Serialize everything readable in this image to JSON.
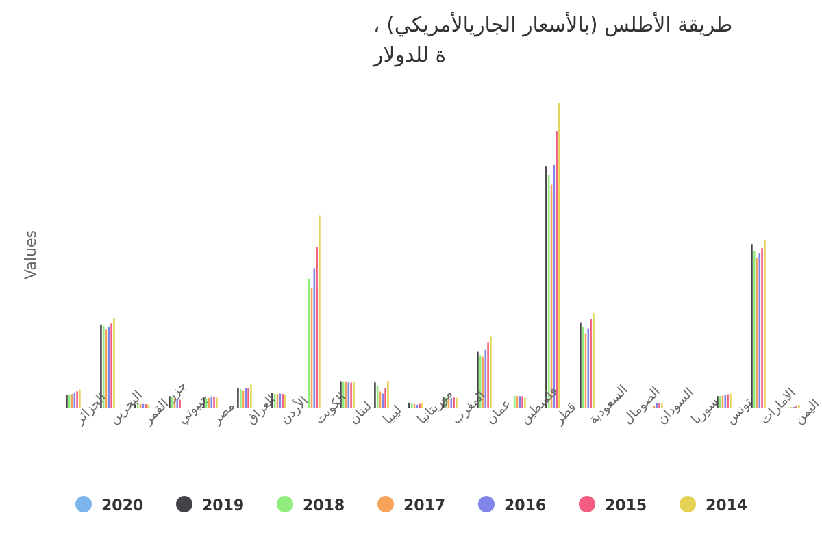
{
  "chart_data": {
    "type": "bar",
    "title_line1": "، طريقة الأطلس (بالأسعار الجاريالأمريكي)",
    "title_line2": "ة للدولار",
    "ylabel": "Values",
    "categories": [
      "الجزائر",
      "البحرين",
      "جزر القمر",
      "جيبوتي",
      "مصر",
      "العراق",
      "الأردن",
      "الكويت",
      "لبنان",
      "ليبيا",
      "موريتانيا",
      "المغرب",
      "عمان",
      "فلسطين",
      "قطر",
      "السعودية",
      "الصومال",
      "السودان",
      "سوريا",
      "تونس",
      "الامارات",
      "اليمن"
    ],
    "series": [
      {
        "name": "2020",
        "color": "#7cb5ec",
        "values": [
          null,
          null,
          null,
          null,
          null,
          null,
          null,
          null,
          null,
          null,
          null,
          null,
          null,
          null,
          null,
          null,
          null,
          null,
          null,
          null,
          null,
          null
        ]
      },
      {
        "name": "2019",
        "color": "#434348",
        "values": [
          3970,
          24470,
          1130,
          3540,
          3020,
          6010,
          4450,
          null,
          7900,
          7550,
          1620,
          3180,
          16480,
          null,
          70560,
          25060,
          null,
          null,
          null,
          3560,
          47950,
          null
        ]
      },
      {
        "name": "2018",
        "color": "#90ed7d",
        "values": [
          4050,
          23990,
          1340,
          3180,
          2620,
          5610,
          4300,
          37860,
          7850,
          6650,
          1360,
          3170,
          15510,
          3640,
          68150,
          23780,
          null,
          240,
          null,
          3580,
          45870,
          310
        ]
      },
      {
        "name": "2017",
        "color": "#f7a35c",
        "values": [
          4140,
          22930,
          1280,
          2960,
          3000,
          5040,
          4220,
          35070,
          7860,
          4890,
          1260,
          2930,
          15040,
          3560,
          65270,
          21920,
          null,
          720,
          null,
          3700,
          43980,
          330
        ]
      },
      {
        "name": "2016",
        "color": "#8085e9",
        "values": [
          4470,
          23830,
          1250,
          2690,
          3450,
          5860,
          4270,
          40930,
          7560,
          4280,
          1020,
          2930,
          17040,
          3550,
          71020,
          23310,
          null,
          1460,
          null,
          3820,
          45260,
          410
        ]
      },
      {
        "name": "2015",
        "color": "#f15c80",
        "values": [
          4950,
          24740,
          1190,
          2480,
          3420,
          5920,
          4190,
          47110,
          7500,
          5980,
          1250,
          3130,
          19310,
          3530,
          80970,
          26070,
          null,
          1590,
          null,
          4110,
          46760,
          730
        ]
      },
      {
        "name": "2014",
        "color": "#e4d354",
        "values": [
          5480,
          26400,
          1090,
          null,
          3140,
          6930,
          3930,
          56350,
          7820,
          8010,
          1450,
          3050,
          20900,
          3080,
          89010,
          27730,
          null,
          1320,
          null,
          4270,
          49040,
          1020
        ]
      }
    ],
    "ylim": [
      0,
      100000
    ],
    "legend_position": "bottom",
    "grid": false
  }
}
